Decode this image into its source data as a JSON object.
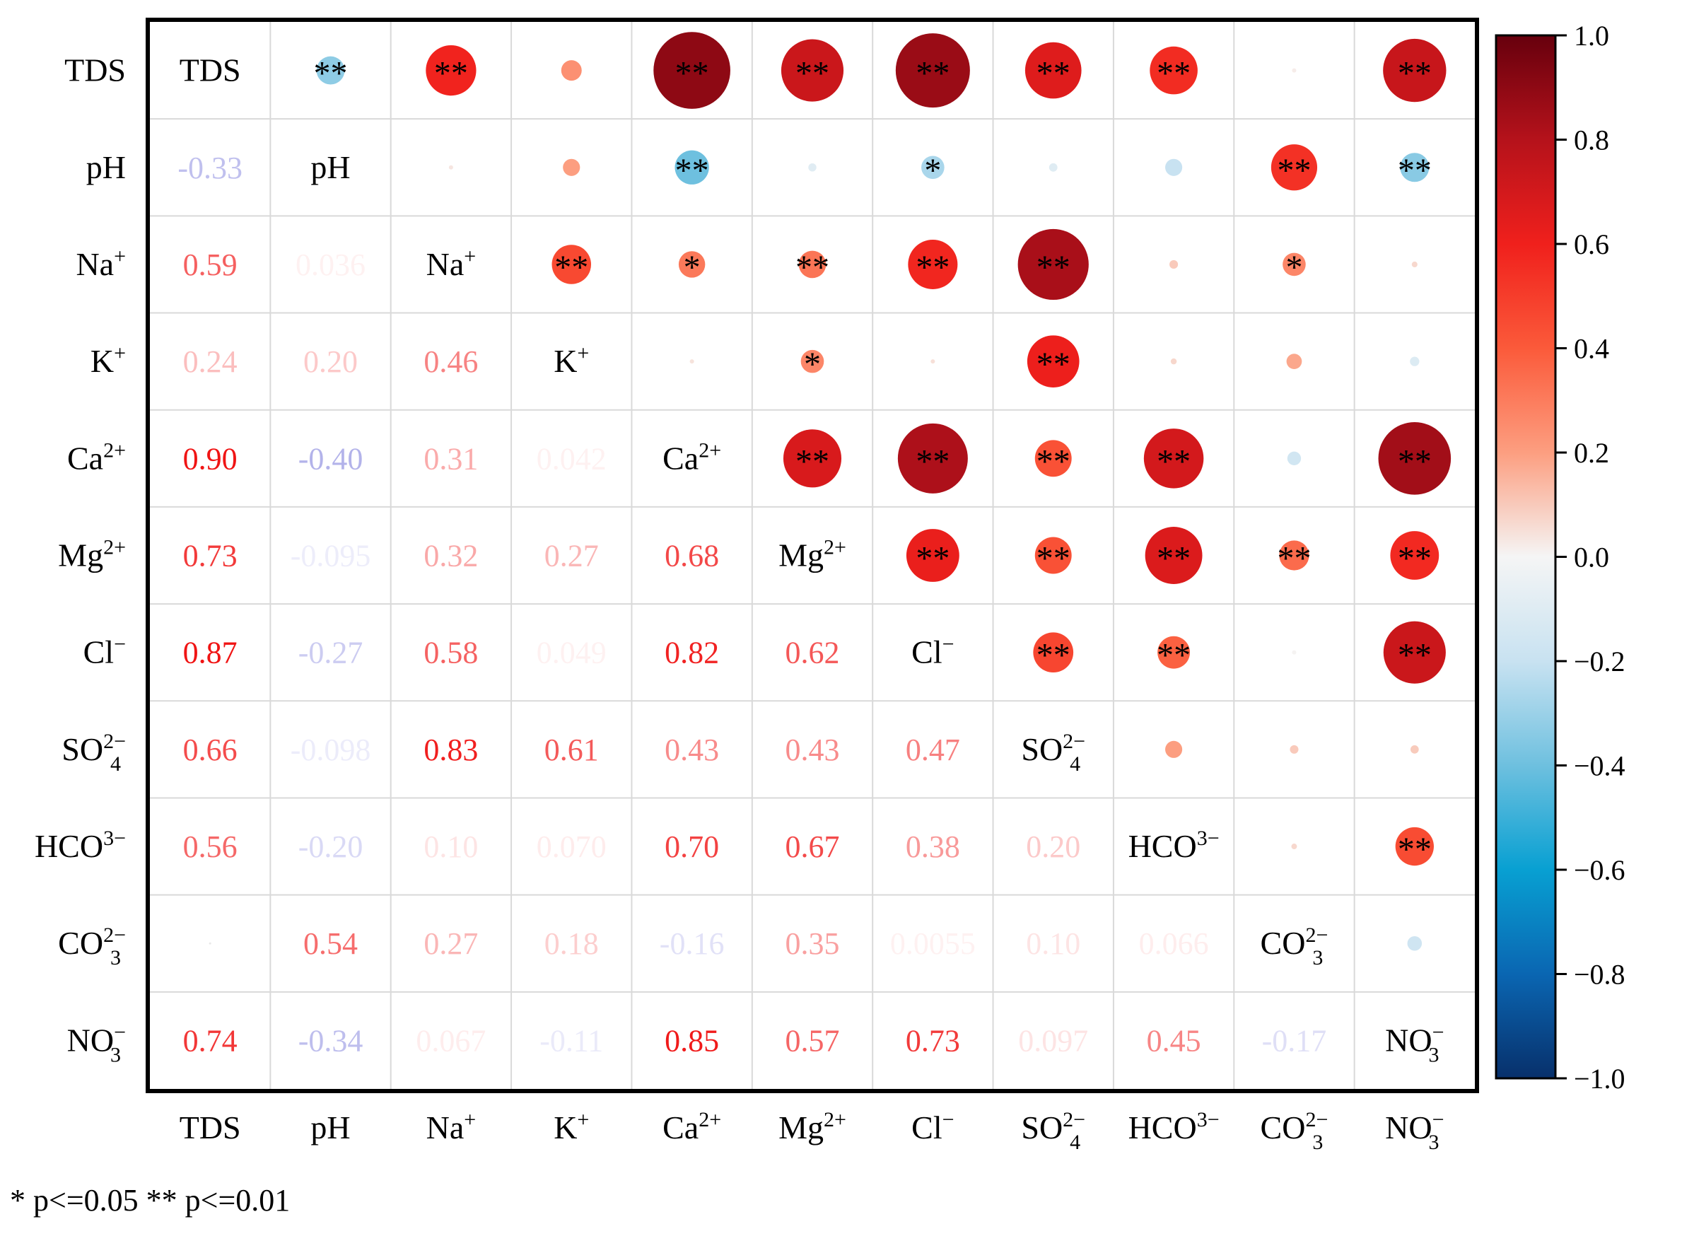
{
  "chart_data": {
    "type": "correlation-matrix",
    "variables": [
      {
        "id": "TDS",
        "base": "TDS",
        "sup": "",
        "sub": ""
      },
      {
        "id": "pH",
        "base": "pH",
        "sup": "",
        "sub": ""
      },
      {
        "id": "Na+",
        "base": "Na",
        "sup": "+",
        "sub": ""
      },
      {
        "id": "K+",
        "base": "K",
        "sup": "+",
        "sub": ""
      },
      {
        "id": "Ca2+",
        "base": "Ca",
        "sup": "2+",
        "sub": ""
      },
      {
        "id": "Mg2+",
        "base": "Mg",
        "sup": "2+",
        "sub": ""
      },
      {
        "id": "Cl-",
        "base": "Cl",
        "sup": "−",
        "sub": ""
      },
      {
        "id": "SO4 2-",
        "base": "SO",
        "sup": "2−",
        "sub": "4"
      },
      {
        "id": "HCO3-",
        "base": "HCO",
        "sup": "3−",
        "sub": ""
      },
      {
        "id": "CO3 2-",
        "base": "CO",
        "sup": "2−",
        "sub": "3"
      },
      {
        "id": "NO3-",
        "base": "NO",
        "sup": "−",
        "sub": "3"
      }
    ],
    "lower_labels": [
      [],
      [
        "-0.33"
      ],
      [
        "0.59",
        "0.036"
      ],
      [
        "0.24",
        "0.20",
        "0.46"
      ],
      [
        "0.90",
        "-0.40",
        "0.31",
        "0.042"
      ],
      [
        "0.73",
        "-0.095",
        "0.32",
        "0.27",
        "0.68"
      ],
      [
        "0.87",
        "-0.27",
        "0.58",
        "0.049",
        "0.82",
        "0.62"
      ],
      [
        "0.66",
        "-0.098",
        "0.83",
        "0.61",
        "0.43",
        "0.43",
        "0.47"
      ],
      [
        "0.56",
        "-0.20",
        "0.10",
        "0.070",
        "0.70",
        "0.67",
        "0.38",
        "0.20"
      ],
      [
        "",
        "0.54",
        "0.27",
        "0.18",
        "-0.16",
        "0.35",
        "0.0055",
        "0.10",
        "0.066"
      ],
      [
        "0.74",
        "-0.34",
        "0.067",
        "-0.11",
        "0.85",
        "0.57",
        "0.73",
        "0.097",
        "0.45",
        "-0.17"
      ]
    ],
    "lower_r": [
      [],
      [
        -0.33
      ],
      [
        0.59,
        0.036
      ],
      [
        0.24,
        0.2,
        0.46
      ],
      [
        0.9,
        -0.4,
        0.31,
        0.042
      ],
      [
        0.73,
        -0.095,
        0.32,
        0.27,
        0.68
      ],
      [
        0.87,
        -0.27,
        0.58,
        0.049,
        0.82,
        0.62
      ],
      [
        0.66,
        -0.098,
        0.83,
        0.61,
        0.43,
        0.43,
        0.47
      ],
      [
        0.56,
        -0.2,
        0.1,
        0.07,
        0.7,
        0.67,
        0.38,
        0.2
      ],
      [
        0.02,
        0.54,
        0.27,
        0.18,
        -0.16,
        0.35,
        0.0055,
        0.1,
        0.066
      ],
      [
        0.74,
        -0.34,
        0.067,
        -0.11,
        0.85,
        0.57,
        0.73,
        0.097,
        0.45,
        -0.17
      ]
    ],
    "upper_r": [
      [
        null,
        -0.33,
        0.59,
        0.24,
        0.9,
        0.73,
        0.87,
        0.66,
        0.56,
        0.02,
        0.74
      ],
      [
        null,
        null,
        0.036,
        0.2,
        -0.4,
        -0.095,
        -0.27,
        -0.098,
        -0.2,
        0.54,
        -0.34
      ],
      [
        null,
        null,
        null,
        0.46,
        0.31,
        0.32,
        0.58,
        0.83,
        0.1,
        0.27,
        0.067
      ],
      [
        null,
        null,
        null,
        null,
        0.042,
        0.27,
        0.049,
        0.61,
        0.07,
        0.18,
        -0.11
      ],
      [
        null,
        null,
        null,
        null,
        null,
        0.68,
        0.82,
        0.43,
        0.7,
        -0.16,
        0.85
      ],
      [
        null,
        null,
        null,
        null,
        null,
        null,
        0.62,
        0.43,
        0.67,
        0.35,
        0.57
      ],
      [
        null,
        null,
        null,
        null,
        null,
        null,
        null,
        0.47,
        0.38,
        0.0055,
        0.73
      ],
      [
        null,
        null,
        null,
        null,
        null,
        null,
        null,
        null,
        0.2,
        0.1,
        0.097
      ],
      [
        null,
        null,
        null,
        null,
        null,
        null,
        null,
        null,
        null,
        0.066,
        0.45
      ],
      [
        null,
        null,
        null,
        null,
        null,
        null,
        null,
        null,
        null,
        null,
        -0.17
      ],
      [
        null,
        null,
        null,
        null,
        null,
        null,
        null,
        null,
        null,
        null,
        null
      ]
    ],
    "upper_stars": [
      [
        "",
        "**",
        "**",
        "",
        "**",
        "**",
        "**",
        "**",
        "**",
        "",
        "**"
      ],
      [
        "",
        "",
        "",
        "",
        "**",
        "",
        "*",
        "",
        "",
        "**",
        "**"
      ],
      [
        "",
        "",
        "",
        "**",
        "*",
        "**",
        "**",
        "**",
        "",
        "*",
        ""
      ],
      [
        "",
        "",
        "",
        "",
        "",
        "*",
        "",
        "**",
        "",
        "",
        ""
      ],
      [
        "",
        "",
        "",
        "",
        "",
        "**",
        "**",
        "**",
        "**",
        "",
        "**"
      ],
      [
        "",
        "",
        "",
        "",
        "",
        "",
        "**",
        "**",
        "**",
        "**",
        "**"
      ],
      [
        "",
        "",
        "",
        "",
        "",
        "",
        "",
        "**",
        "**",
        "",
        "**"
      ],
      [
        "",
        "",
        "",
        "",
        "",
        "",
        "",
        "",
        "",
        "",
        ""
      ],
      [
        "",
        "",
        "",
        "",
        "",
        "",
        "",
        "",
        "",
        "",
        "**"
      ],
      [
        "",
        "",
        "",
        "",
        "",
        "",
        "",
        "",
        "",
        "",
        ""
      ],
      [
        "",
        "",
        "",
        "",
        "",
        "",
        "",
        "",
        "",
        "",
        ""
      ]
    ],
    "colorbar": {
      "range": [
        -1.0,
        1.0
      ],
      "ticks": [
        "1.0",
        "0.8",
        "0.6",
        "0.4",
        "0.2",
        "0.0",
        "−0.2",
        "−0.4",
        "−0.6",
        "−0.8",
        "−1.0"
      ],
      "tick_values": [
        1.0,
        0.8,
        0.6,
        0.4,
        0.2,
        0.0,
        -0.2,
        -0.4,
        -0.6,
        -0.8,
        -1.0
      ]
    },
    "footnote": "* p<=0.05  ** p<=0.01"
  }
}
